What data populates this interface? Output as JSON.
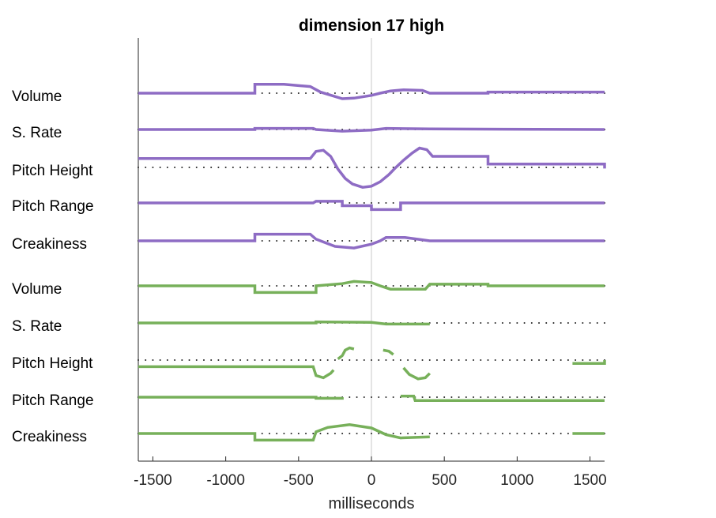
{
  "chart_data": {
    "type": "line",
    "title": "dimension 17 high",
    "xlabel": "milliseconds",
    "ylabel": "",
    "xlim": [
      -1600,
      1600
    ],
    "xticks": [
      -1500,
      -1000,
      -500,
      0,
      500,
      1000,
      1500
    ],
    "grid": false,
    "center_line_x": 0,
    "groups": [
      {
        "name": "",
        "color": "#8e6cc4",
        "series": [
          {
            "label": "Volume",
            "points": [
              [
                -1600,
                0
              ],
              [
                -800,
                0
              ],
              [
                -800,
                1.6
              ],
              [
                -600,
                1.6
              ],
              [
                -420,
                1.2
              ],
              [
                -350,
                0.2
              ],
              [
                -200,
                -1
              ],
              [
                -120,
                -0.9
              ],
              [
                0,
                -0.4
              ],
              [
                60,
                0
              ],
              [
                130,
                0.4
              ],
              [
                220,
                0.6
              ],
              [
                350,
                0.5
              ],
              [
                400,
                0
              ],
              [
                800,
                0
              ],
              [
                800,
                0.2
              ],
              [
                1600,
                0.2
              ]
            ]
          },
          {
            "label": "S. Rate",
            "points": [
              [
                -1600,
                0
              ],
              [
                -800,
                0
              ],
              [
                -800,
                0.2
              ],
              [
                -400,
                0.2
              ],
              [
                -380,
                0
              ],
              [
                -200,
                -0.3
              ],
              [
                0,
                -0.1
              ],
              [
                100,
                0.2
              ],
              [
                400,
                0.1
              ],
              [
                1600,
                0
              ]
            ]
          },
          {
            "label": "Pitch Height",
            "points": [
              [
                -1600,
                1.6
              ],
              [
                -420,
                1.6
              ],
              [
                -380,
                2.9
              ],
              [
                -330,
                3.1
              ],
              [
                -280,
                2
              ],
              [
                -230,
                -0.3
              ],
              [
                -180,
                -2
              ],
              [
                -130,
                -3
              ],
              [
                -60,
                -3.6
              ],
              [
                0,
                -3.4
              ],
              [
                60,
                -2.6
              ],
              [
                120,
                -1.3
              ],
              [
                160,
                -0.2
              ],
              [
                220,
                1.3
              ],
              [
                280,
                2.6
              ],
              [
                330,
                3.5
              ],
              [
                380,
                3.2
              ],
              [
                420,
                2
              ],
              [
                800,
                2
              ],
              [
                800,
                0.6
              ],
              [
                1600,
                0.6
              ],
              [
                1600,
                -0.2
              ]
            ]
          },
          {
            "label": "Pitch Range",
            "points": [
              [
                -1600,
                0
              ],
              [
                -800,
                0
              ],
              [
                -400,
                0
              ],
              [
                -380,
                0.3
              ],
              [
                -200,
                0.3
              ],
              [
                -200,
                -0.5
              ],
              [
                0,
                -0.5
              ],
              [
                0,
                -1.2
              ],
              [
                200,
                -1.2
              ],
              [
                200,
                0
              ],
              [
                1600,
                0
              ]
            ]
          },
          {
            "label": "Creakiness",
            "points": [
              [
                -1600,
                0
              ],
              [
                -800,
                0
              ],
              [
                -800,
                1.2
              ],
              [
                -420,
                1.2
              ],
              [
                -380,
                0.3
              ],
              [
                -250,
                -1
              ],
              [
                -120,
                -1.3
              ],
              [
                0,
                -0.6
              ],
              [
                60,
                0
              ],
              [
                100,
                0.6
              ],
              [
                230,
                0.6
              ],
              [
                400,
                0
              ],
              [
                1600,
                0
              ]
            ]
          }
        ]
      },
      {
        "name": "",
        "color": "#77b05a",
        "series": [
          {
            "label": "Volume",
            "points": [
              [
                -1600,
                0
              ],
              [
                -800,
                0
              ],
              [
                -800,
                -1.2
              ],
              [
                -380,
                -1.2
              ],
              [
                -380,
                0
              ],
              [
                -200,
                0.4
              ],
              [
                -120,
                0.8
              ],
              [
                0,
                0.6
              ],
              [
                60,
                0
              ],
              [
                130,
                -0.6
              ],
              [
                370,
                -0.6
              ],
              [
                400,
                0.3
              ],
              [
                800,
                0.3
              ],
              [
                800,
                0
              ],
              [
                1600,
                0
              ]
            ]
          },
          {
            "label": "S. Rate",
            "points": [
              [
                -1600,
                0
              ],
              [
                -380,
                0
              ],
              [
                -380,
                0.2
              ],
              [
                0,
                0.1
              ],
              [
                100,
                -0.2
              ],
              [
                400,
                -0.2
              ]
            ]
          },
          {
            "label": "Pitch Height",
            "segments": [
              [
                [
                  -1600,
                  -1.2
                ],
                [
                  -400,
                  -1.2
                ],
                [
                  -380,
                  -2.8
                ],
                [
                  -330,
                  -3.2
                ],
                [
                  -280,
                  -2.4
                ],
                [
                  -260,
                  -1.8
                ]
              ],
              [
                [
                  -230,
                  0.2
                ],
                [
                  -200,
                  0.8
                ],
                [
                  -180,
                  1.8
                ],
                [
                  -150,
                  2.2
                ],
                [
                  -120,
                  2
                ]
              ],
              [
                [
                  80,
                  1.8
                ],
                [
                  120,
                  1.6
                ],
                [
                  150,
                  1
                ]
              ],
              [
                [
                  220,
                  -1.4
                ],
                [
                  260,
                  -2.6
                ],
                [
                  320,
                  -3.4
                ],
                [
                  370,
                  -3.2
                ],
                [
                  400,
                  -2.4
                ]
              ],
              [
                [
                  1380,
                  -0.6
                ],
                [
                  1600,
                  -0.6
                ],
                [
                  1600,
                  0
                ]
              ]
            ]
          },
          {
            "label": "Pitch Range",
            "segments": [
              [
                [
                  -1600,
                  0
                ],
                [
                  -380,
                  0
                ],
                [
                  -380,
                  -0.2
                ],
                [
                  -200,
                  -0.2
                ],
                [
                  -200,
                  0
                ]
              ],
              [
                [
                  200,
                  0.2
                ],
                [
                  290,
                  0.2
                ],
                [
                  300,
                  -0.6
                ],
                [
                  1600,
                  -0.6
                ]
              ]
            ]
          },
          {
            "label": "Creakiness",
            "segments": [
              [
                [
                  -1600,
                  0
                ],
                [
                  -800,
                  0
                ],
                [
                  -800,
                  -1.2
                ],
                [
                  -400,
                  -1.2
                ],
                [
                  -380,
                  0.3
                ],
                [
                  -300,
                  1.1
                ],
                [
                  -150,
                  1.6
                ],
                [
                  0,
                  1
                ],
                [
                  100,
                  -0.2
                ],
                [
                  200,
                  -0.8
                ],
                [
                  400,
                  -0.6
                ]
              ],
              [
                [
                  1380,
                  0
                ],
                [
                  1600,
                  0
                ]
              ]
            ]
          }
        ]
      }
    ]
  }
}
